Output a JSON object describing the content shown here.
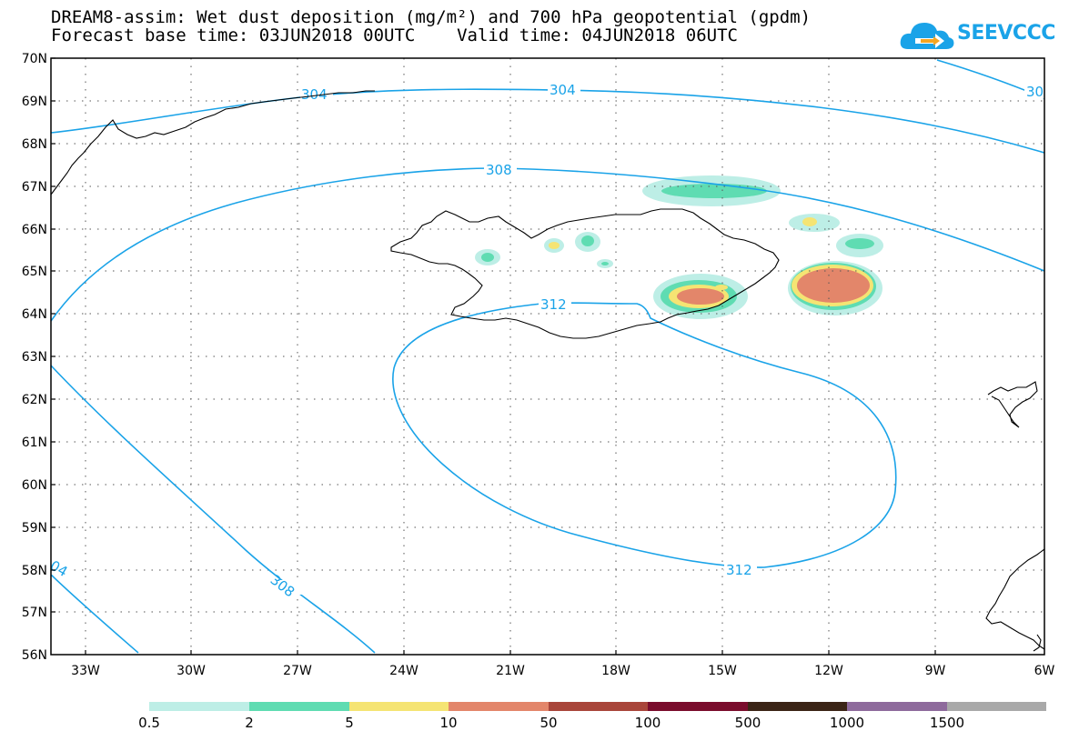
{
  "title": {
    "line1": "DREAM8-assim: Wet dust deposition (mg/m²) and 700 hPa geopotential (gpdm)",
    "line2": "Forecast base time: 03JUN2018 00UTC    Valid time: 04JUN2018 06UTC"
  },
  "logo": {
    "text": "SEEVCCC",
    "icon": "cloud-arrow-icon"
  },
  "axes": {
    "lat_labels": [
      "70N",
      "69N",
      "68N",
      "67N",
      "66N",
      "65N",
      "64N",
      "63N",
      "62N",
      "61N",
      "60N",
      "59N",
      "58N",
      "57N",
      "56N"
    ],
    "lon_labels": [
      "33W",
      "30W",
      "27W",
      "24W",
      "21W",
      "18W",
      "15W",
      "12W",
      "9W",
      "6W"
    ]
  },
  "contours": {
    "color": "#1aa3e8",
    "labels": [
      "304",
      "304",
      "30",
      "308",
      "312",
      "312",
      "308",
      "04"
    ]
  },
  "legend": {
    "labels": [
      "0.5",
      "2",
      "5",
      "10",
      "50",
      "100",
      "500",
      "1000",
      "1500"
    ],
    "colors": [
      "#bdeee6",
      "#5fdcb2",
      "#f5e473",
      "#e3866a",
      "#a9453a",
      "#7a0c2c",
      "#3b2416",
      "#8e6a9c",
      "#a9a9a9"
    ]
  },
  "colors": {
    "coastline": "#000000",
    "grid": "#555555"
  }
}
